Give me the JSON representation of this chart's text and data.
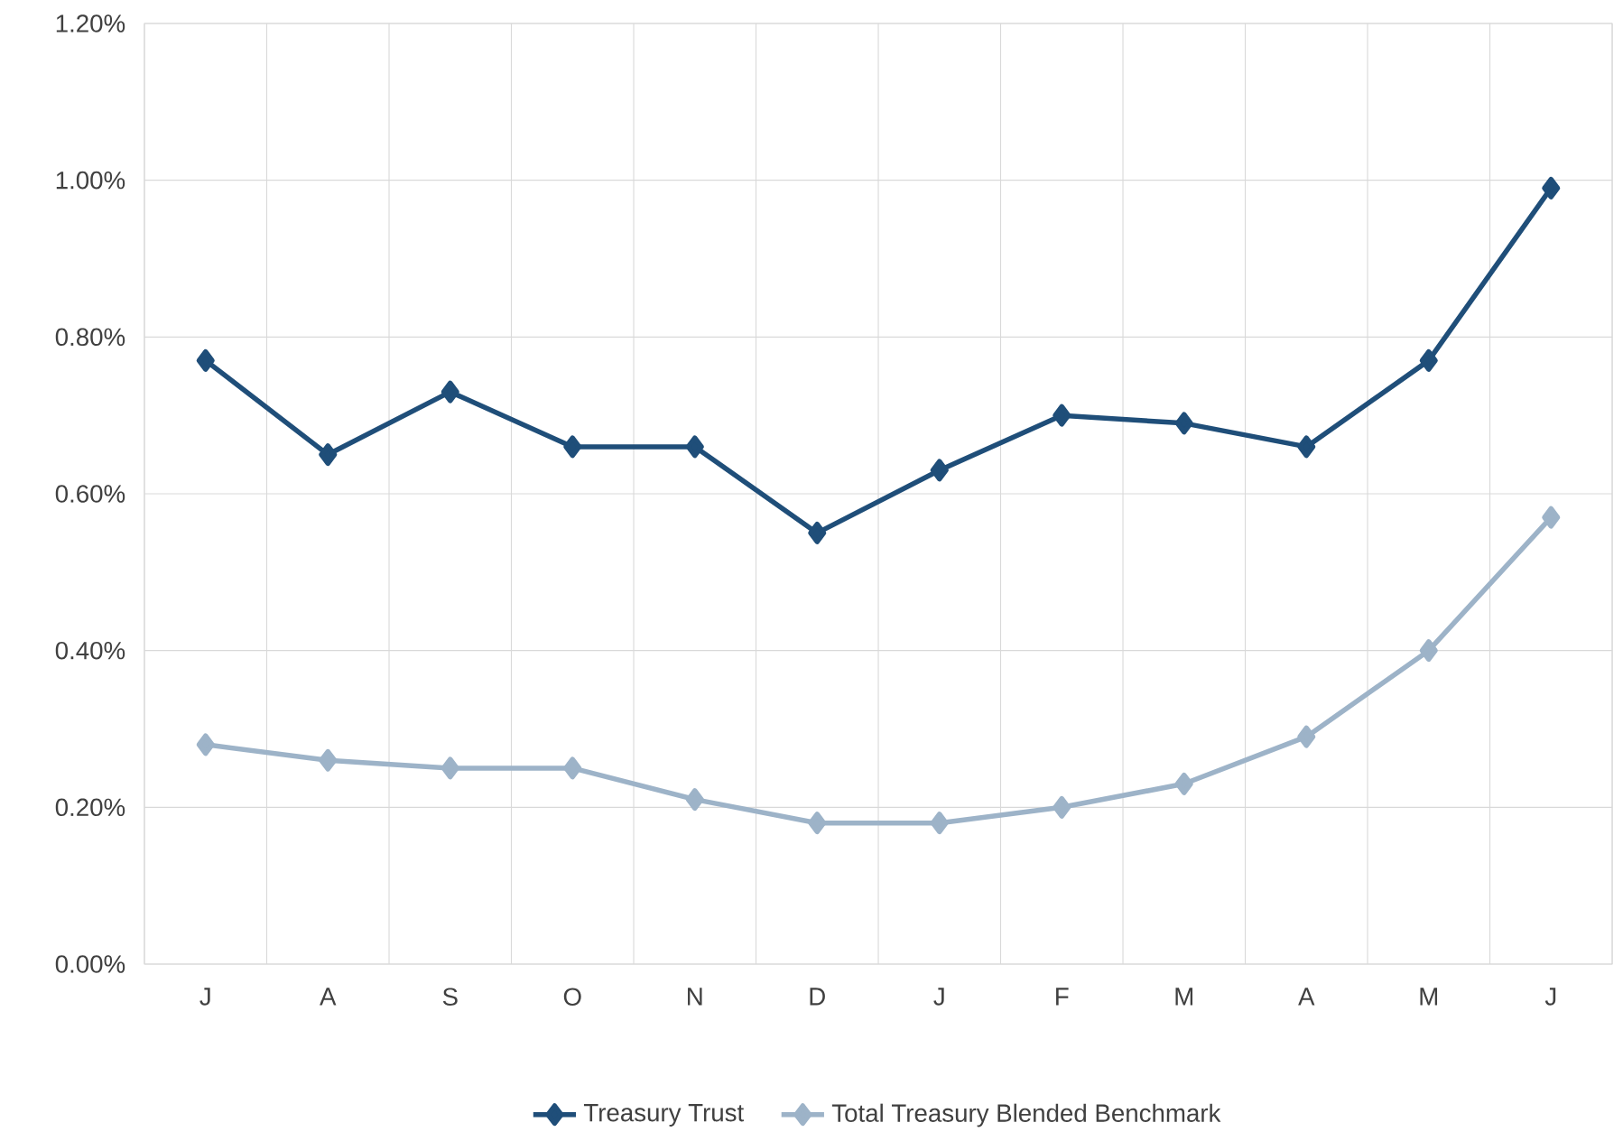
{
  "chart_data": {
    "type": "line",
    "categories": [
      "J",
      "A",
      "S",
      "O",
      "N",
      "D",
      "J",
      "F",
      "M",
      "A",
      "M",
      "J"
    ],
    "series": [
      {
        "name": "Treasury Trust",
        "color": "#1f4e79",
        "values": [
          0.77,
          0.65,
          0.73,
          0.66,
          0.66,
          0.55,
          0.63,
          0.7,
          0.69,
          0.66,
          0.77,
          0.99
        ]
      },
      {
        "name": "Total Treasury Blended Benchmark",
        "color": "#9db3c8",
        "values": [
          0.28,
          0.26,
          0.25,
          0.25,
          0.21,
          0.18,
          0.18,
          0.2,
          0.23,
          0.29,
          0.4,
          0.57
        ]
      }
    ],
    "ylim": [
      0,
      1.2
    ],
    "yticks": [
      {
        "value": 0,
        "label": "0.00%"
      },
      {
        "value": 0.2,
        "label": "0.20%"
      },
      {
        "value": 0.4,
        "label": "0.40%"
      },
      {
        "value": 0.6,
        "label": "0.60%"
      },
      {
        "value": 0.8,
        "label": "0.80%"
      },
      {
        "value": 1.0,
        "label": "1.00%"
      },
      {
        "value": 1.2,
        "label": "1.20%"
      }
    ],
    "grid": true,
    "legend": "bottom",
    "marker": "diamond",
    "line_style": "solid"
  }
}
